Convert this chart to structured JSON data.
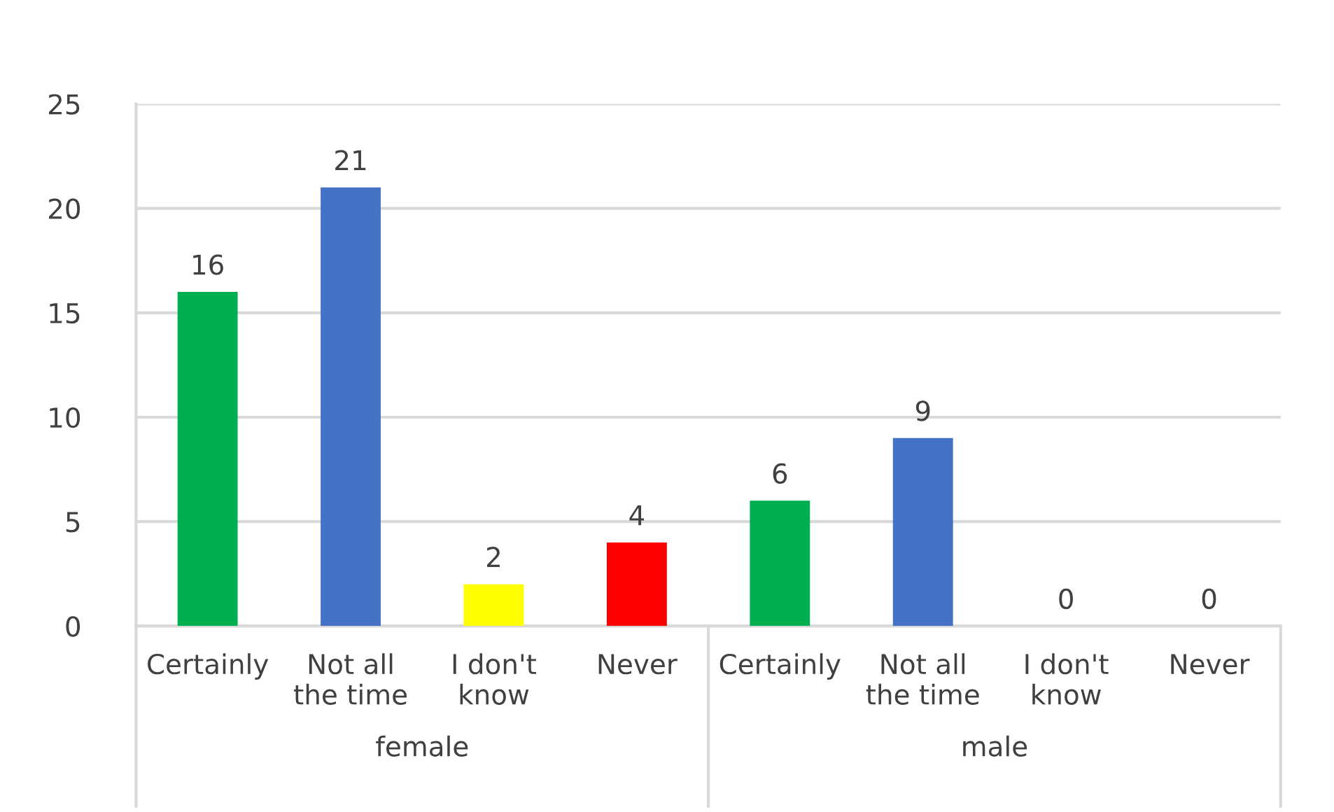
{
  "chart_data": {
    "type": "bar",
    "categories": [
      "Certainly",
      "Not all\nthe time",
      "I don't\nknow",
      "Never",
      "Certainly",
      "Not all\nthe time",
      "I don't\nknow",
      "Never"
    ],
    "values": [
      16,
      21,
      2,
      4,
      6,
      9,
      0,
      0
    ],
    "colors": [
      "#00b050",
      "#4472c4",
      "#ffff00",
      "#ff0000",
      "#00b050",
      "#4472c4",
      "#ffff00",
      "#ff0000"
    ],
    "annotations": [
      "female",
      "male"
    ],
    "ylim": [
      0,
      25
    ],
    "yticks": [
      0,
      5,
      10,
      15,
      20,
      25
    ],
    "grid": "y",
    "legend": false,
    "data_labels": true
  }
}
